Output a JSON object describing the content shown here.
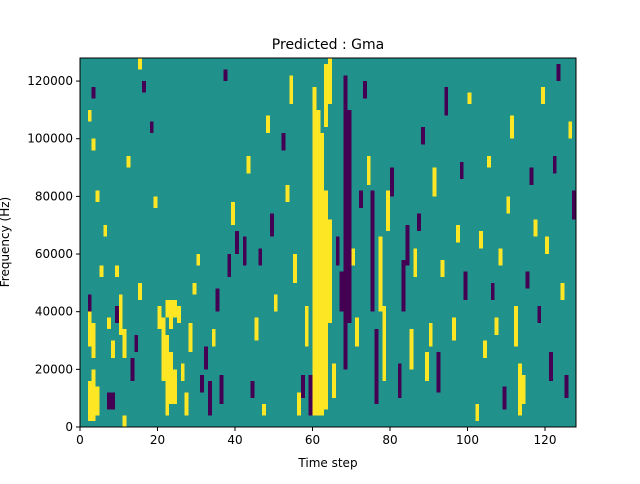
{
  "chart_data": {
    "type": "heatmap",
    "title": "Predicted : Gma",
    "xlabel": "Time step",
    "ylabel": "Frequency (Hz)",
    "xlim": [
      0,
      128
    ],
    "ylim": [
      0,
      128000
    ],
    "x_ticks": [
      0,
      20,
      40,
      60,
      80,
      100,
      120
    ],
    "y_ticks": [
      0,
      20000,
      40000,
      60000,
      80000,
      100000,
      120000
    ],
    "y_tick_labels": [
      "0",
      "20000",
      "40000",
      "60000",
      "80000",
      "100000",
      "120000"
    ],
    "n_time_steps": 128,
    "n_freq_bins": 64,
    "levels": [
      -1,
      0,
      1
    ],
    "colormap": [
      "#440154",
      "#21918c",
      "#fde725"
    ],
    "grid": false,
    "values": "sparse",
    "background_value": 0,
    "cells": [
      {
        "t": 2,
        "f0": 1,
        "f1": 7,
        "v": 1
      },
      {
        "t": 3,
        "f0": 1,
        "f1": 9,
        "v": 1
      },
      {
        "t": 4,
        "f0": 2,
        "f1": 6,
        "v": 1
      },
      {
        "t": 2,
        "f0": 14,
        "f1": 19,
        "v": 1
      },
      {
        "t": 3,
        "f0": 12,
        "f1": 17,
        "v": 1
      },
      {
        "t": 2,
        "f0": 20,
        "f1": 22,
        "v": -1
      },
      {
        "t": 3,
        "f0": 57,
        "f1": 58,
        "v": -1
      },
      {
        "t": 2,
        "f0": 53,
        "f1": 54,
        "v": 1
      },
      {
        "t": 3,
        "f0": 48,
        "f1": 49,
        "v": 1
      },
      {
        "t": 4,
        "f0": 39,
        "f1": 40,
        "v": 1
      },
      {
        "t": 5,
        "f0": 26,
        "f1": 27,
        "v": 1
      },
      {
        "t": 6,
        "f0": 33,
        "f1": 34,
        "v": 1
      },
      {
        "t": 7,
        "f0": 17,
        "f1": 18,
        "v": 1
      },
      {
        "t": 7,
        "f0": 3,
        "f1": 5,
        "v": -1
      },
      {
        "t": 8,
        "f0": 3,
        "f1": 5,
        "v": -1
      },
      {
        "t": 8,
        "f0": 12,
        "f1": 14,
        "v": 1
      },
      {
        "t": 9,
        "f0": 26,
        "f1": 27,
        "v": 1
      },
      {
        "t": 9,
        "f0": 18,
        "f1": 20,
        "v": -1
      },
      {
        "t": 10,
        "f0": 16,
        "f1": 22,
        "v": 1
      },
      {
        "t": 11,
        "f0": 0,
        "f1": 1,
        "v": 1
      },
      {
        "t": 11,
        "f0": 12,
        "f1": 16,
        "v": 1
      },
      {
        "t": 12,
        "f0": 45,
        "f1": 46,
        "v": 1
      },
      {
        "t": 13,
        "f0": 8,
        "f1": 11,
        "v": -1
      },
      {
        "t": 14,
        "f0": 13,
        "f1": 15,
        "v": -1
      },
      {
        "t": 15,
        "f0": 22,
        "f1": 24,
        "v": 1
      },
      {
        "t": 15,
        "f0": 62,
        "f1": 63,
        "v": 1
      },
      {
        "t": 16,
        "f0": 58,
        "f1": 59,
        "v": -1
      },
      {
        "t": 18,
        "f0": 51,
        "f1": 52,
        "v": -1
      },
      {
        "t": 19,
        "f0": 38,
        "f1": 39,
        "v": 1
      },
      {
        "t": 20,
        "f0": 17,
        "f1": 20,
        "v": 1
      },
      {
        "t": 21,
        "f0": 8,
        "f1": 18,
        "v": 1
      },
      {
        "t": 22,
        "f0": 2,
        "f1": 15,
        "v": 1
      },
      {
        "t": 23,
        "f0": 4,
        "f1": 12,
        "v": 1
      },
      {
        "t": 24,
        "f0": 4,
        "f1": 9,
        "v": 1
      },
      {
        "t": 22,
        "f0": 19,
        "f1": 21,
        "v": 1
      },
      {
        "t": 23,
        "f0": 17,
        "f1": 21,
        "v": 1
      },
      {
        "t": 24,
        "f0": 19,
        "f1": 21,
        "v": 1
      },
      {
        "t": 25,
        "f0": 18,
        "f1": 20,
        "v": 1
      },
      {
        "t": 26,
        "f0": 8,
        "f1": 10,
        "v": 1
      },
      {
        "t": 27,
        "f0": 2,
        "f1": 5,
        "v": 1
      },
      {
        "t": 28,
        "f0": 13,
        "f1": 17,
        "v": 1
      },
      {
        "t": 29,
        "f0": 23,
        "f1": 24,
        "v": 1
      },
      {
        "t": 30,
        "f0": 28,
        "f1": 29,
        "v": 1
      },
      {
        "t": 31,
        "f0": 6,
        "f1": 8,
        "v": -1
      },
      {
        "t": 32,
        "f0": 10,
        "f1": 13,
        "v": -1
      },
      {
        "t": 33,
        "f0": 2,
        "f1": 7,
        "v": -1
      },
      {
        "t": 34,
        "f0": 14,
        "f1": 16,
        "v": 1
      },
      {
        "t": 35,
        "f0": 20,
        "f1": 23,
        "v": -1
      },
      {
        "t": 36,
        "f0": 4,
        "f1": 8,
        "v": -1
      },
      {
        "t": 37,
        "f0": 60,
        "f1": 61,
        "v": -1
      },
      {
        "t": 38,
        "f0": 26,
        "f1": 29,
        "v": -1
      },
      {
        "t": 39,
        "f0": 35,
        "f1": 38,
        "v": 1
      },
      {
        "t": 40,
        "f0": 30,
        "f1": 33,
        "v": -1
      },
      {
        "t": 42,
        "f0": 28,
        "f1": 32,
        "v": -1
      },
      {
        "t": 43,
        "f0": 44,
        "f1": 46,
        "v": 1
      },
      {
        "t": 44,
        "f0": 5,
        "f1": 7,
        "v": -1
      },
      {
        "t": 45,
        "f0": 15,
        "f1": 18,
        "v": 1
      },
      {
        "t": 46,
        "f0": 28,
        "f1": 30,
        "v": -1
      },
      {
        "t": 47,
        "f0": 2,
        "f1": 3,
        "v": 1
      },
      {
        "t": 48,
        "f0": 51,
        "f1": 53,
        "v": 1
      },
      {
        "t": 49,
        "f0": 33,
        "f1": 36,
        "v": -1
      },
      {
        "t": 50,
        "f0": 20,
        "f1": 22,
        "v": 1
      },
      {
        "t": 52,
        "f0": 48,
        "f1": 50,
        "v": -1
      },
      {
        "t": 53,
        "f0": 39,
        "f1": 41,
        "v": 1
      },
      {
        "t": 54,
        "f0": 56,
        "f1": 60,
        "v": 1
      },
      {
        "t": 55,
        "f0": 25,
        "f1": 29,
        "v": 1
      },
      {
        "t": 56,
        "f0": 2,
        "f1": 5,
        "v": 1
      },
      {
        "t": 57,
        "f0": 5,
        "f1": 8,
        "v": -1
      },
      {
        "t": 58,
        "f0": 14,
        "f1": 20,
        "v": 1
      },
      {
        "t": 59,
        "f0": 2,
        "f1": 8,
        "v": -1
      },
      {
        "t": 60,
        "f0": 2,
        "f1": 58,
        "v": 1
      },
      {
        "t": 61,
        "f0": 2,
        "f1": 54,
        "v": 1
      },
      {
        "t": 62,
        "f0": 2,
        "f1": 50,
        "v": 1
      },
      {
        "t": 63,
        "f0": 3,
        "f1": 40,
        "v": 1
      },
      {
        "t": 64,
        "f0": 18,
        "f1": 35,
        "v": 1
      },
      {
        "t": 63,
        "f0": 52,
        "f1": 62,
        "v": 1
      },
      {
        "t": 64,
        "f0": 56,
        "f1": 63,
        "v": 1
      },
      {
        "t": 65,
        "f0": 5,
        "f1": 10,
        "v": 1
      },
      {
        "t": 66,
        "f0": 28,
        "f1": 32,
        "v": -1
      },
      {
        "t": 67,
        "f0": 20,
        "f1": 26,
        "v": -1
      },
      {
        "t": 68,
        "f0": 10,
        "f1": 60,
        "v": -1
      },
      {
        "t": 69,
        "f0": 18,
        "f1": 54,
        "v": -1
      },
      {
        "t": 70,
        "f0": 28,
        "f1": 30,
        "v": 1
      },
      {
        "t": 71,
        "f0": 14,
        "f1": 18,
        "v": 1
      },
      {
        "t": 72,
        "f0": 38,
        "f1": 40,
        "v": -1
      },
      {
        "t": 73,
        "f0": 57,
        "f1": 59,
        "v": -1
      },
      {
        "t": 74,
        "f0": 42,
        "f1": 46,
        "v": 1
      },
      {
        "t": 75,
        "f0": 20,
        "f1": 40,
        "v": -1
      },
      {
        "t": 76,
        "f0": 4,
        "f1": 16,
        "v": -1
      },
      {
        "t": 77,
        "f0": 20,
        "f1": 32,
        "v": 1
      },
      {
        "t": 78,
        "f0": 8,
        "f1": 20,
        "v": 1
      },
      {
        "t": 79,
        "f0": 34,
        "f1": 40,
        "v": 1
      },
      {
        "t": 80,
        "f0": 40,
        "f1": 44,
        "v": -1
      },
      {
        "t": 82,
        "f0": 5,
        "f1": 10,
        "v": -1
      },
      {
        "t": 83,
        "f0": 20,
        "f1": 28,
        "v": -1
      },
      {
        "t": 84,
        "f0": 28,
        "f1": 34,
        "v": -1
      },
      {
        "t": 85,
        "f0": 10,
        "f1": 16,
        "v": 1
      },
      {
        "t": 86,
        "f0": 26,
        "f1": 30,
        "v": 1
      },
      {
        "t": 87,
        "f0": 34,
        "f1": 36,
        "v": -1
      },
      {
        "t": 88,
        "f0": 49,
        "f1": 51,
        "v": -1
      },
      {
        "t": 89,
        "f0": 8,
        "f1": 12,
        "v": 1
      },
      {
        "t": 90,
        "f0": 14,
        "f1": 17,
        "v": 1
      },
      {
        "t": 91,
        "f0": 40,
        "f1": 44,
        "v": 1
      },
      {
        "t": 92,
        "f0": 6,
        "f1": 12,
        "v": -1
      },
      {
        "t": 93,
        "f0": 26,
        "f1": 28,
        "v": 1
      },
      {
        "t": 94,
        "f0": 54,
        "f1": 58,
        "v": -1
      },
      {
        "t": 96,
        "f0": 15,
        "f1": 18,
        "v": 1
      },
      {
        "t": 97,
        "f0": 32,
        "f1": 34,
        "v": 1
      },
      {
        "t": 98,
        "f0": 43,
        "f1": 45,
        "v": -1
      },
      {
        "t": 99,
        "f0": 22,
        "f1": 26,
        "v": -1
      },
      {
        "t": 100,
        "f0": 56,
        "f1": 57,
        "v": 1
      },
      {
        "t": 102,
        "f0": 1,
        "f1": 3,
        "v": 1
      },
      {
        "t": 103,
        "f0": 31,
        "f1": 33,
        "v": 1
      },
      {
        "t": 104,
        "f0": 12,
        "f1": 14,
        "v": 1
      },
      {
        "t": 105,
        "f0": 45,
        "f1": 46,
        "v": 1
      },
      {
        "t": 106,
        "f0": 22,
        "f1": 24,
        "v": -1
      },
      {
        "t": 107,
        "f0": 16,
        "f1": 18,
        "v": 1
      },
      {
        "t": 108,
        "f0": 28,
        "f1": 30,
        "v": 1
      },
      {
        "t": 109,
        "f0": 3,
        "f1": 6,
        "v": -1
      },
      {
        "t": 110,
        "f0": 37,
        "f1": 39,
        "v": 1
      },
      {
        "t": 111,
        "f0": 50,
        "f1": 53,
        "v": 1
      },
      {
        "t": 112,
        "f0": 14,
        "f1": 20,
        "v": 1
      },
      {
        "t": 113,
        "f0": 2,
        "f1": 10,
        "v": 1
      },
      {
        "t": 114,
        "f0": 4,
        "f1": 8,
        "v": 1
      },
      {
        "t": 115,
        "f0": 24,
        "f1": 26,
        "v": -1
      },
      {
        "t": 116,
        "f0": 42,
        "f1": 44,
        "v": -1
      },
      {
        "t": 117,
        "f0": 33,
        "f1": 35,
        "v": 1
      },
      {
        "t": 118,
        "f0": 18,
        "f1": 20,
        "v": -1
      },
      {
        "t": 119,
        "f0": 56,
        "f1": 58,
        "v": 1
      },
      {
        "t": 120,
        "f0": 30,
        "f1": 32,
        "v": 1
      },
      {
        "t": 121,
        "f0": 8,
        "f1": 12,
        "v": -1
      },
      {
        "t": 122,
        "f0": 44,
        "f1": 46,
        "v": -1
      },
      {
        "t": 123,
        "f0": 60,
        "f1": 62,
        "v": -1
      },
      {
        "t": 124,
        "f0": 22,
        "f1": 24,
        "v": 1
      },
      {
        "t": 125,
        "f0": 5,
        "f1": 8,
        "v": -1
      },
      {
        "t": 126,
        "f0": 50,
        "f1": 52,
        "v": 1
      },
      {
        "t": 127,
        "f0": 36,
        "f1": 40,
        "v": -1
      }
    ]
  }
}
